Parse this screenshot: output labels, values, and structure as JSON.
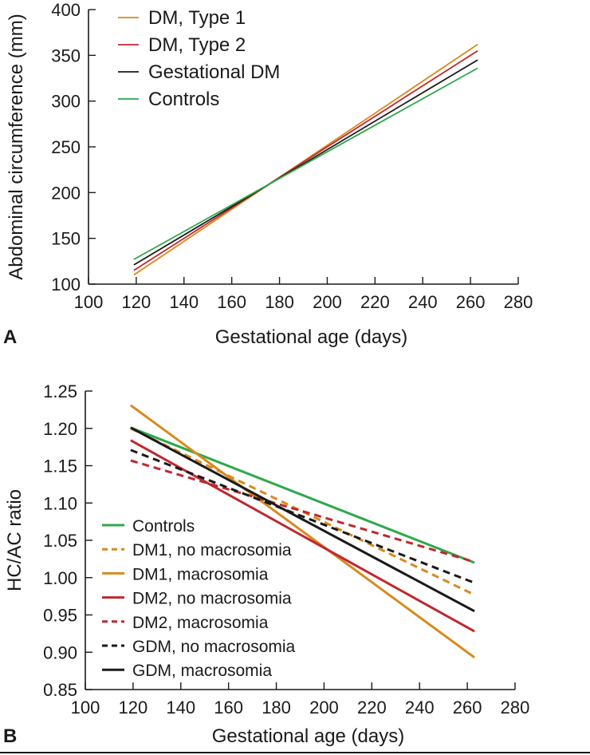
{
  "chart_data": [
    {
      "panel_label": "A",
      "type": "line",
      "xlabel": "Gestational age (days)",
      "ylabel": "Abdominal circumference (mm)",
      "xlim": [
        100,
        280
      ],
      "ylim": [
        100,
        400
      ],
      "xticks": [
        100,
        120,
        140,
        160,
        180,
        200,
        220,
        240,
        260,
        280
      ],
      "yticks": [
        100,
        150,
        200,
        250,
        300,
        350,
        400
      ],
      "legend_position": "top-left",
      "series": [
        {
          "name": "DM, Type 1",
          "color": "#d88a1c",
          "dash": "solid",
          "x": [
            119,
            263
          ],
          "y": [
            110,
            362
          ]
        },
        {
          "name": "DM, Type 2",
          "color": "#c0282f",
          "dash": "solid",
          "x": [
            119,
            263
          ],
          "y": [
            115,
            355
          ]
        },
        {
          "name": "Gestational DM",
          "color": "#1a1a1a",
          "dash": "solid",
          "x": [
            119,
            263
          ],
          "y": [
            121,
            345
          ]
        },
        {
          "name": "Controls",
          "color": "#2ea84a",
          "dash": "solid",
          "x": [
            119,
            263
          ],
          "y": [
            127,
            336
          ]
        }
      ]
    },
    {
      "panel_label": "B",
      "type": "line",
      "xlabel": "Gestational age (days)",
      "ylabel": "HC/AC ratio",
      "xlim": [
        100,
        280
      ],
      "ylim": [
        0.85,
        1.25
      ],
      "xticks": [
        100,
        120,
        140,
        160,
        180,
        200,
        220,
        240,
        260,
        280
      ],
      "yticks": [
        "0.85",
        "0.90",
        "0.95",
        "1.00",
        "1.05",
        "1.10",
        "1.15",
        "1.20",
        "1.25"
      ],
      "legend_position": "bottom-left",
      "series": [
        {
          "name": "Controls",
          "color": "#2ea84a",
          "dash": "solid",
          "x": [
            119,
            263
          ],
          "y": [
            1.201,
            1.02
          ]
        },
        {
          "name": "DM1, no macrosomia",
          "color": "#d88a1c",
          "dash": "dashed",
          "x": [
            119,
            263
          ],
          "y": [
            1.2,
            0.977
          ]
        },
        {
          "name": "DM1, macrosomia",
          "color": "#d88a1c",
          "dash": "solid",
          "x": [
            119,
            263
          ],
          "y": [
            1.231,
            0.893
          ]
        },
        {
          "name": "DM2, no macrosomia",
          "color": "#c0282f",
          "dash": "solid",
          "x": [
            119,
            263
          ],
          "y": [
            1.184,
            0.928
          ]
        },
        {
          "name": "DM2, macrosomia",
          "color": "#c0282f",
          "dash": "dashed",
          "x": [
            119,
            263
          ],
          "y": [
            1.157,
            1.021
          ]
        },
        {
          "name": "GDM, no macrosomia",
          "color": "#1a1a1a",
          "dash": "dashed",
          "x": [
            119,
            263
          ],
          "y": [
            1.171,
            0.993
          ]
        },
        {
          "name": "GDM, macrosomia",
          "color": "#1a1a1a",
          "dash": "solid",
          "x": [
            119,
            263
          ],
          "y": [
            1.201,
            0.955
          ]
        }
      ]
    }
  ]
}
